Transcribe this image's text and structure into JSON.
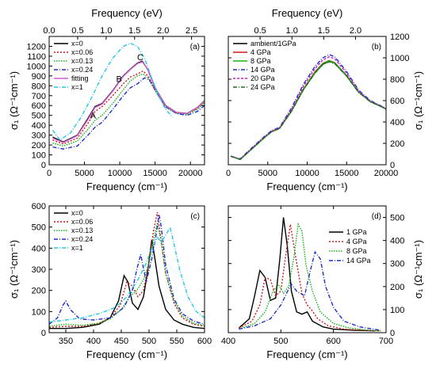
{
  "chart_data": [
    {
      "panel": "a",
      "type": "line",
      "panel_label": "(a)",
      "xlabel": "Frequency (cm⁻¹)",
      "ylabel": "σ₁ (Ω⁻¹cm⁻¹)",
      "top_xlabel": "Frequency (eV)",
      "xlim": [
        0,
        22000
      ],
      "ylim": [
        0,
        1300
      ],
      "xticks": [
        0,
        5000,
        10000,
        15000,
        20000
      ],
      "yticks": [
        0,
        100,
        200,
        300,
        400,
        500,
        600,
        700,
        800,
        900,
        1000,
        1100,
        1200
      ],
      "top_xticks": [
        0.0,
        0.5,
        1.0,
        1.5,
        2.0,
        2.5
      ],
      "top_tick_labels": [
        "0.0",
        "0.5",
        "1.0",
        "1.5",
        "2.0",
        "2.5"
      ],
      "legend_position": "upper-left",
      "grid": false,
      "annotations": [
        {
          "text": "A",
          "x": 6200,
          "y": 470
        },
        {
          "text": "B",
          "x": 9900,
          "y": 840
        },
        {
          "text": "C",
          "x": 12900,
          "y": 1060
        }
      ],
      "series": [
        {
          "name": "x=0",
          "color": "#000000",
          "dash": "solid",
          "x": [
            500,
            2000,
            4000,
            5500,
            6500,
            7500,
            9000,
            10500,
            11500,
            12500,
            13200,
            14000,
            15000,
            16500,
            18000,
            19500,
            21000,
            22000
          ],
          "y": [
            280,
            230,
            300,
            470,
            590,
            620,
            750,
            900,
            970,
            1030,
            1050,
            960,
            780,
            600,
            530,
            520,
            580,
            650
          ]
        },
        {
          "name": "x=0.06",
          "color": "#cc1b1b",
          "dash": "2,2",
          "x": [
            500,
            2000,
            4000,
            5500,
            6500,
            7500,
            9000,
            10500,
            11500,
            12500,
            13300,
            14000,
            15000,
            16500,
            18000,
            19500,
            21000,
            22000
          ],
          "y": [
            250,
            210,
            270,
            420,
            540,
            590,
            700,
            820,
            890,
            920,
            950,
            900,
            760,
            590,
            530,
            515,
            570,
            640
          ]
        },
        {
          "name": "x=0.13",
          "color": "#17b317",
          "dash": "1.5,1.5",
          "x": [
            500,
            2000,
            4000,
            5500,
            6500,
            7500,
            9000,
            10500,
            11500,
            12500,
            13300,
            14000,
            15000,
            16500,
            18000,
            19500,
            21000,
            22000
          ],
          "y": [
            220,
            190,
            240,
            360,
            450,
            500,
            620,
            760,
            850,
            900,
            920,
            880,
            750,
            580,
            520,
            510,
            560,
            630
          ]
        },
        {
          "name": "x=0.24",
          "color": "#1f2fc9",
          "dash": "5,2,1,2",
          "x": [
            500,
            2000,
            4000,
            5500,
            6500,
            7500,
            9000,
            10500,
            11500,
            12500,
            13500,
            14200,
            15000,
            16500,
            18000,
            19500,
            21000,
            22000
          ],
          "y": [
            180,
            160,
            190,
            300,
            380,
            430,
            560,
            700,
            780,
            820,
            880,
            860,
            760,
            590,
            520,
            500,
            540,
            600
          ]
        },
        {
          "name": "fitting",
          "color": "#d35fd3",
          "dash": "solid",
          "x": [
            500,
            2000,
            4000,
            5500,
            6500,
            7500,
            9000,
            10500,
            11500,
            12500,
            13300,
            14000,
            15000,
            16500,
            18000,
            19500,
            21000,
            22000
          ],
          "y": [
            270,
            225,
            295,
            460,
            580,
            615,
            745,
            895,
            965,
            1025,
            1045,
            955,
            775,
            598,
            528,
            518,
            578,
            648
          ]
        },
        {
          "name": "x=1",
          "color": "#22c8e8",
          "dash": "5,2,1,2",
          "x": [
            500,
            1500,
            3000,
            4500,
            6000,
            7500,
            9000,
            10500,
            11500,
            12500,
            13500,
            14500,
            15500,
            16500,
            17500
          ],
          "y": [
            350,
            250,
            320,
            480,
            680,
            900,
            1080,
            1200,
            1230,
            1200,
            1080,
            880,
            700,
            560,
            480
          ]
        }
      ]
    },
    {
      "panel": "b",
      "type": "line",
      "panel_label": "(b)",
      "xlabel": "Frequency (cm⁻¹)",
      "ylabel": "σ₁ (Ω⁻¹cm⁻¹)",
      "top_xlabel": "Frequency (eV)",
      "xlim": [
        0,
        20000
      ],
      "ylim": [
        0,
        1200
      ],
      "xticks": [
        0,
        5000,
        10000,
        15000,
        20000
      ],
      "yticks": [
        0,
        200,
        400,
        600,
        800,
        1000,
        1200
      ],
      "top_xticks": [
        0.5,
        1.0,
        1.5,
        2.0
      ],
      "top_tick_labels": [
        "0.5",
        "1.0",
        "1.5",
        "2.0"
      ],
      "legend_position": "upper-left",
      "grid": false,
      "series": [
        {
          "name": "ambient/1GPa",
          "color": "#000000",
          "dash": "solid",
          "x": [
            300,
            1500,
            3000,
            4500,
            5500,
            6500,
            8000,
            9500,
            11000,
            12000,
            12800,
            13500,
            15000,
            16500,
            18000,
            19500,
            20000
          ],
          "y": [
            80,
            50,
            150,
            250,
            310,
            340,
            500,
            700,
            860,
            940,
            970,
            950,
            830,
            680,
            590,
            540,
            520
          ]
        },
        {
          "name": "4 GPa",
          "color": "#cc1b1b",
          "dash": "solid",
          "x": [
            300,
            1500,
            3000,
            4500,
            5500,
            6500,
            8000,
            9500,
            11000,
            12000,
            12800,
            13500,
            15000,
            16500,
            18000,
            19500,
            20000
          ],
          "y": [
            80,
            50,
            152,
            252,
            312,
            342,
            505,
            705,
            870,
            950,
            975,
            955,
            835,
            683,
            592,
            541,
            521
          ]
        },
        {
          "name": "8 GPa",
          "color": "#17b317",
          "dash": "solid",
          "x": [
            300,
            1500,
            3000,
            4500,
            5500,
            6500,
            8000,
            9500,
            11000,
            12000,
            12800,
            13500,
            15000,
            16500,
            18000,
            19500,
            20000
          ],
          "y": [
            80,
            50,
            150,
            250,
            312,
            340,
            502,
            702,
            862,
            945,
            972,
            952,
            832,
            681,
            591,
            540,
            520
          ]
        },
        {
          "name": "14 GPa",
          "color": "#1f2fc9",
          "dash": "5,2,1,2",
          "x": [
            300,
            1500,
            3000,
            4500,
            5500,
            6500,
            8000,
            9500,
            11000,
            12000,
            12800,
            13500,
            15000,
            16500,
            18000,
            19500,
            20000
          ],
          "y": [
            80,
            55,
            160,
            260,
            320,
            350,
            530,
            750,
            920,
            1000,
            1030,
            1010,
            870,
            700,
            600,
            545,
            525
          ]
        },
        {
          "name": "20 GPa",
          "color": "#c81fc8",
          "dash": "3,2",
          "x": [
            300,
            1500,
            3000,
            4500,
            5500,
            6500,
            8000,
            9500,
            11000,
            12000,
            12800,
            13500,
            15000,
            16500,
            18000,
            19500,
            20000
          ],
          "y": [
            80,
            52,
            155,
            255,
            315,
            345,
            515,
            730,
            900,
            980,
            1010,
            990,
            855,
            690,
            595,
            543,
            523
          ]
        },
        {
          "name": "24 GPa",
          "color": "#1a6e1a",
          "dash": "5,2,1,2",
          "x": [
            300,
            1500,
            3000,
            4500,
            5500,
            6500,
            8000,
            9500,
            11000,
            12000,
            12800,
            13500,
            15000,
            16500,
            18000,
            19500,
            20000
          ],
          "y": [
            80,
            50,
            148,
            248,
            308,
            338,
            498,
            698,
            858,
            938,
            962,
            945,
            828,
            678,
            590,
            540,
            520
          ]
        }
      ]
    },
    {
      "panel": "c",
      "type": "line",
      "panel_label": "(c)",
      "xlabel": "Frequency (cm⁻¹)",
      "ylabel": "σ₁ (Ω⁻¹cm⁻¹)",
      "xlim": [
        320,
        600
      ],
      "ylim": [
        0,
        600
      ],
      "xticks": [
        350,
        400,
        450,
        500,
        550,
        600
      ],
      "yticks": [
        0,
        100,
        200,
        300,
        400,
        500,
        600
      ],
      "legend_position": "upper-left",
      "grid": false,
      "series": [
        {
          "name": "x=0",
          "color": "#000000",
          "dash": "solid",
          "x": [
            320,
            350,
            380,
            410,
            430,
            445,
            455,
            462,
            470,
            480,
            490,
            498,
            505,
            510,
            518,
            530,
            545,
            560,
            580,
            600
          ],
          "y": [
            20,
            20,
            25,
            40,
            70,
            150,
            270,
            240,
            140,
            110,
            170,
            300,
            440,
            360,
            220,
            110,
            60,
            40,
            25,
            20
          ]
        },
        {
          "name": "x=0.06",
          "color": "#cc1b1b",
          "dash": "2,2",
          "x": [
            320,
            350,
            380,
            410,
            430,
            448,
            460,
            470,
            480,
            490,
            500,
            508,
            515,
            520,
            530,
            545,
            560,
            580,
            600
          ],
          "y": [
            25,
            30,
            30,
            45,
            70,
            130,
            240,
            220,
            170,
            200,
            330,
            480,
            570,
            470,
            280,
            140,
            70,
            40,
            30
          ]
        },
        {
          "name": "x=0.13",
          "color": "#17b317",
          "dash": "1.5,1.5",
          "x": [
            320,
            350,
            380,
            410,
            430,
            450,
            465,
            478,
            490,
            500,
            510,
            515,
            522,
            530,
            545,
            560,
            580,
            600
          ],
          "y": [
            30,
            40,
            35,
            45,
            65,
            110,
            170,
            200,
            250,
            330,
            460,
            520,
            430,
            280,
            150,
            80,
            45,
            35
          ]
        },
        {
          "name": "x=0.24",
          "color": "#1f2fc9",
          "dash": "5,2,1,2",
          "x": [
            320,
            335,
            345,
            350,
            358,
            375,
            400,
            430,
            455,
            470,
            478,
            485,
            495,
            505,
            512,
            518,
            522,
            530,
            545,
            560,
            580,
            600
          ],
          "y": [
            40,
            70,
            130,
            150,
            110,
            65,
            60,
            70,
            120,
            200,
            300,
            370,
            240,
            350,
            450,
            560,
            500,
            320,
            160,
            90,
            55,
            40
          ]
        },
        {
          "name": "x=1",
          "color": "#22c8e8",
          "dash": "5,2,1,2",
          "x": [
            320,
            350,
            380,
            410,
            440,
            460,
            480,
            495,
            505,
            515,
            522,
            530,
            538,
            545,
            555,
            570,
            585,
            600
          ],
          "y": [
            50,
            60,
            70,
            90,
            120,
            170,
            250,
            330,
            400,
            450,
            430,
            460,
            500,
            420,
            300,
            170,
            100,
            70
          ]
        }
      ]
    },
    {
      "panel": "d",
      "type": "line",
      "panel_label": "(d)",
      "xlabel": "Frequency (cm⁻¹)",
      "ylabel": "σ₁ (Ω⁻¹cm⁻¹)",
      "xlim": [
        400,
        700
      ],
      "ylim": [
        0,
        550
      ],
      "xticks": [
        400,
        500,
        600,
        700
      ],
      "yticks": [
        0,
        100,
        200,
        300,
        400,
        500
      ],
      "legend_position": "upper-right",
      "grid": false,
      "series": [
        {
          "name": "1 GPa",
          "color": "#000000",
          "dash": "solid",
          "x": [
            420,
            440,
            450,
            460,
            470,
            480,
            490,
            498,
            505,
            512,
            520,
            530,
            540,
            550,
            560,
            580,
            600,
            640,
            680
          ],
          "y": [
            20,
            60,
            160,
            270,
            240,
            140,
            150,
            320,
            500,
            380,
            180,
            90,
            80,
            90,
            50,
            25,
            15,
            10,
            8
          ]
        },
        {
          "name": "4 GPa",
          "color": "#cc1b1b",
          "dash": "2,2",
          "x": [
            420,
            445,
            460,
            470,
            480,
            490,
            500,
            510,
            518,
            528,
            540,
            550,
            558,
            570,
            590,
            620,
            660,
            690
          ],
          "y": [
            20,
            50,
            120,
            240,
            230,
            160,
            180,
            350,
            470,
            330,
            170,
            120,
            100,
            60,
            30,
            15,
            10,
            8
          ]
        },
        {
          "name": "8 GPa",
          "color": "#17b317",
          "dash": "1.5,1.5",
          "x": [
            420,
            450,
            470,
            485,
            495,
            505,
            515,
            525,
            533,
            540,
            548,
            560,
            575,
            600,
            630,
            670,
            690
          ],
          "y": [
            15,
            40,
            90,
            180,
            210,
            170,
            200,
            330,
            470,
            440,
            290,
            180,
            90,
            40,
            20,
            10,
            8
          ]
        },
        {
          "name": "14 GPa",
          "color": "#1f2fc9",
          "dash": "5,2,1,2",
          "x": [
            420,
            450,
            480,
            500,
            515,
            520,
            530,
            545,
            555,
            565,
            575,
            585,
            600,
            620,
            650,
            690
          ],
          "y": [
            15,
            30,
            60,
            120,
            190,
            210,
            180,
            160,
            260,
            350,
            320,
            200,
            110,
            50,
            25,
            10
          ]
        }
      ]
    }
  ]
}
